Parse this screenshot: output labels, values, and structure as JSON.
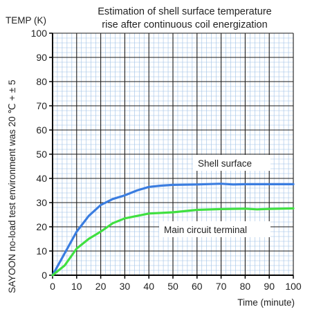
{
  "chart_data": {
    "type": "line",
    "title_lines": [
      "Estimation of shell surface temperature",
      "rise after continuous coil energization"
    ],
    "ylabel": "TEMP (K)",
    "xlabel": "Time (minute)",
    "side_note": "SAYOON no-load test environment was 20  ℃ + ± 5",
    "xlim": [
      0,
      100
    ],
    "ylim": [
      0,
      100
    ],
    "x_ticks": [
      "0",
      "10",
      "20",
      "30",
      "40",
      "50",
      "60",
      "70",
      "80",
      "90",
      "100"
    ],
    "y_ticks": [
      "0",
      "10",
      "20",
      "30",
      "40",
      "50",
      "60",
      "70",
      "80",
      "90",
      "100"
    ],
    "grid": true,
    "series": [
      {
        "name": "Shell surface",
        "color": "#3a7de0",
        "x": [
          0,
          5,
          10,
          15,
          20,
          25,
          30,
          35,
          40,
          45,
          50,
          60,
          70,
          75,
          80,
          90,
          100
        ],
        "y": [
          0,
          9,
          18,
          24.5,
          29,
          31.5,
          33,
          35,
          36.5,
          37,
          37.3,
          37.5,
          37.8,
          37.5,
          37.6,
          37.6,
          37.6
        ]
      },
      {
        "name": "Main circuit terminal",
        "color": "#40e040",
        "x": [
          0,
          5,
          10,
          15,
          20,
          25,
          30,
          35,
          40,
          50,
          60,
          70,
          80,
          85,
          90,
          100
        ],
        "y": [
          0,
          4,
          11,
          15,
          18,
          21.5,
          23.5,
          24.5,
          25.5,
          26,
          27,
          27.3,
          27.5,
          27.2,
          27.4,
          27.6
        ]
      }
    ]
  }
}
